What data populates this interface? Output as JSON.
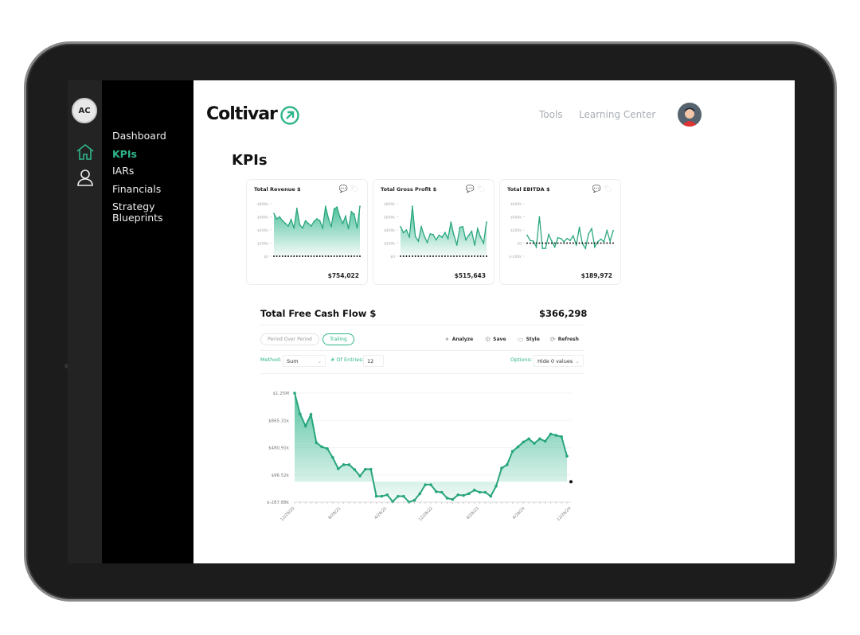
{
  "sidebar": {
    "avatar_initials": "AC",
    "items": [
      {
        "label": "Dashboard"
      },
      {
        "label": "KPIs",
        "active": true
      },
      {
        "label": "IARs"
      },
      {
        "label": "Financials"
      },
      {
        "label": "Strategy"
      },
      {
        "label": "Blueprints"
      }
    ],
    "rail_icons": [
      "home-icon",
      "user-icon"
    ]
  },
  "header": {
    "logo": "Coltivar",
    "nav": [
      "Tools",
      "Learning Center"
    ]
  },
  "page": {
    "title": "KPIs"
  },
  "colors": {
    "accent": "#2fb58b",
    "sidebar": "#000000",
    "rail": "#232323"
  },
  "chart_data": [
    {
      "type": "area",
      "title": "Total Revenue $",
      "value": "$754,022",
      "yticks": [
        "$800k",
        "$600k",
        "$400k",
        "$200k",
        "$0"
      ],
      "ylim": [
        0,
        800000
      ],
      "values": [
        650,
        570,
        600,
        540,
        500,
        460,
        560,
        430,
        730,
        480,
        430,
        540,
        500,
        460,
        530,
        570,
        540,
        430,
        760,
        580,
        450,
        720,
        750,
        600,
        500,
        610,
        420,
        680,
        640,
        430,
        760
      ],
      "unit": "k"
    },
    {
      "type": "area",
      "title": "Total Gross Profit $",
      "value": "$515,643",
      "yticks": [
        "$800k",
        "$600k",
        "$400k",
        "$200k",
        "$0"
      ],
      "ylim": [
        0,
        800000
      ],
      "values": [
        450,
        360,
        400,
        290,
        760,
        300,
        230,
        450,
        310,
        210,
        340,
        330,
        250,
        320,
        290,
        360,
        270,
        520,
        320,
        170,
        440,
        450,
        250,
        320,
        380,
        170,
        420,
        290,
        200,
        520
      ],
      "unit": "k"
    },
    {
      "type": "line",
      "title": "Total EBITDA $",
      "value": "$189,972",
      "yticks": [
        "$600k",
        "$400k",
        "$200k",
        "$0",
        "$-200k"
      ],
      "ylim": [
        -200000,
        600000
      ],
      "values": [
        120,
        40,
        30,
        -60,
        400,
        -80,
        -80,
        130,
        30,
        -60,
        80,
        70,
        20,
        70,
        40,
        110,
        -30,
        240,
        -10,
        -80,
        140,
        220,
        -60,
        20,
        60,
        20,
        190,
        30,
        190
      ],
      "unit": "k"
    },
    {
      "type": "area",
      "title": "Total Free Cash Flow $",
      "value": "$366,298",
      "yticks": [
        "$1.25M",
        "$865.31k",
        "$480.91k",
        "$96.52k",
        "$-287.88k"
      ],
      "ylim": [
        -287880,
        1250000
      ],
      "xticks": [
        "12/29/20",
        "8/28/21",
        "4/28/22",
        "12/28/22",
        "8/28/23",
        "4/28/24",
        "12/28/24"
      ],
      "values": [
        1250,
        956,
        786,
        948,
        549,
        492,
        466,
        341,
        183,
        240,
        240,
        172,
        81,
        176,
        176,
        -205,
        -205,
        -186,
        -281,
        -205,
        -205,
        -288,
        -262,
        -168,
        -43,
        -43,
        -141,
        -149,
        -232,
        -250,
        -186,
        -194,
        -168,
        -119,
        -149,
        -149,
        -205,
        -62,
        191,
        240,
        428,
        492,
        560,
        605,
        541,
        605,
        571,
        673,
        654,
        635,
        360,
        0
      ],
      "unit": "k"
    }
  ],
  "fcf_controls": {
    "tabs": [
      "Period Over Period",
      "Trailing"
    ],
    "actions": [
      "Analyze",
      "Save",
      "Style",
      "Refresh"
    ],
    "method_label": "Method:",
    "method_value": "Sum",
    "entries_label": "# Of Entries:",
    "entries_value": "12",
    "options_label": "Options:",
    "options_value": "Hide 0 values"
  }
}
